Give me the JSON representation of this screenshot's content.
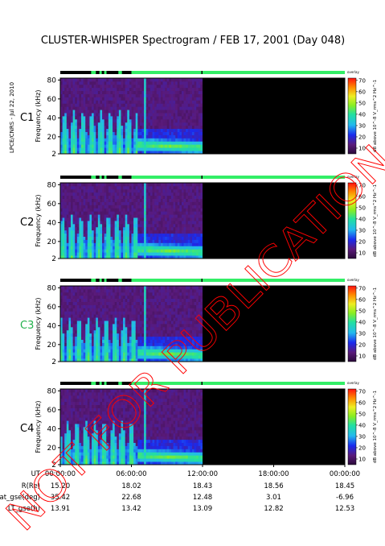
{
  "chart_data": {
    "type": "heatmap",
    "title": "CLUSTER-WHISPER Spectrogram / FEB 17, 2001 (Day 048)",
    "credit": "LPCE/CNRS - Jul 22, 2010",
    "watermark": "NOT FOR PUBLICATION",
    "ylabel": "Frequency (kHz)",
    "yticks": [
      2,
      20,
      40,
      60,
      80
    ],
    "ylim": [
      2,
      82
    ],
    "xticks": [
      "00:00:00",
      "06:00:00",
      "12:00:00",
      "18:00:00",
      "00:00:00"
    ],
    "xlim_hours": [
      0,
      24
    ],
    "data_end_hour": 12,
    "colorbar": {
      "label": "dB above 10^-8 V_rms^2 Hz^-1",
      "ticks": [
        10,
        20,
        30,
        40,
        50,
        60,
        70
      ],
      "range": [
        5,
        72
      ]
    },
    "mode_bar_label": "overlay",
    "panels": [
      {
        "name": "C1",
        "color": "#000000"
      },
      {
        "name": "C2",
        "color": "#000000"
      },
      {
        "name": "C3",
        "color": "#22b14c"
      },
      {
        "name": "C4",
        "color": "#000000"
      }
    ],
    "ephemeris": {
      "row_labels": [
        "UT",
        "R(Re)",
        "Lat_gse(deg)",
        "LT_gse(h)"
      ],
      "times": [
        "00:00:00",
        "06:00:00",
        "12:00:00",
        "18:00:00",
        "00:00:00"
      ],
      "rows": [
        [
          "15.20",
          "18.02",
          "18.43",
          "18.56",
          "18.45"
        ],
        [
          "35.42",
          "22.68",
          "12.48",
          "3.01",
          "-6.96"
        ],
        [
          "13.91",
          "13.42",
          "13.09",
          "12.82",
          "12.53"
        ]
      ]
    }
  },
  "colors": {
    "background_dark": "#4a1a63",
    "no_data": "#000000",
    "mode_bar_green": "#33ee66",
    "watermark": "#ff0000"
  }
}
